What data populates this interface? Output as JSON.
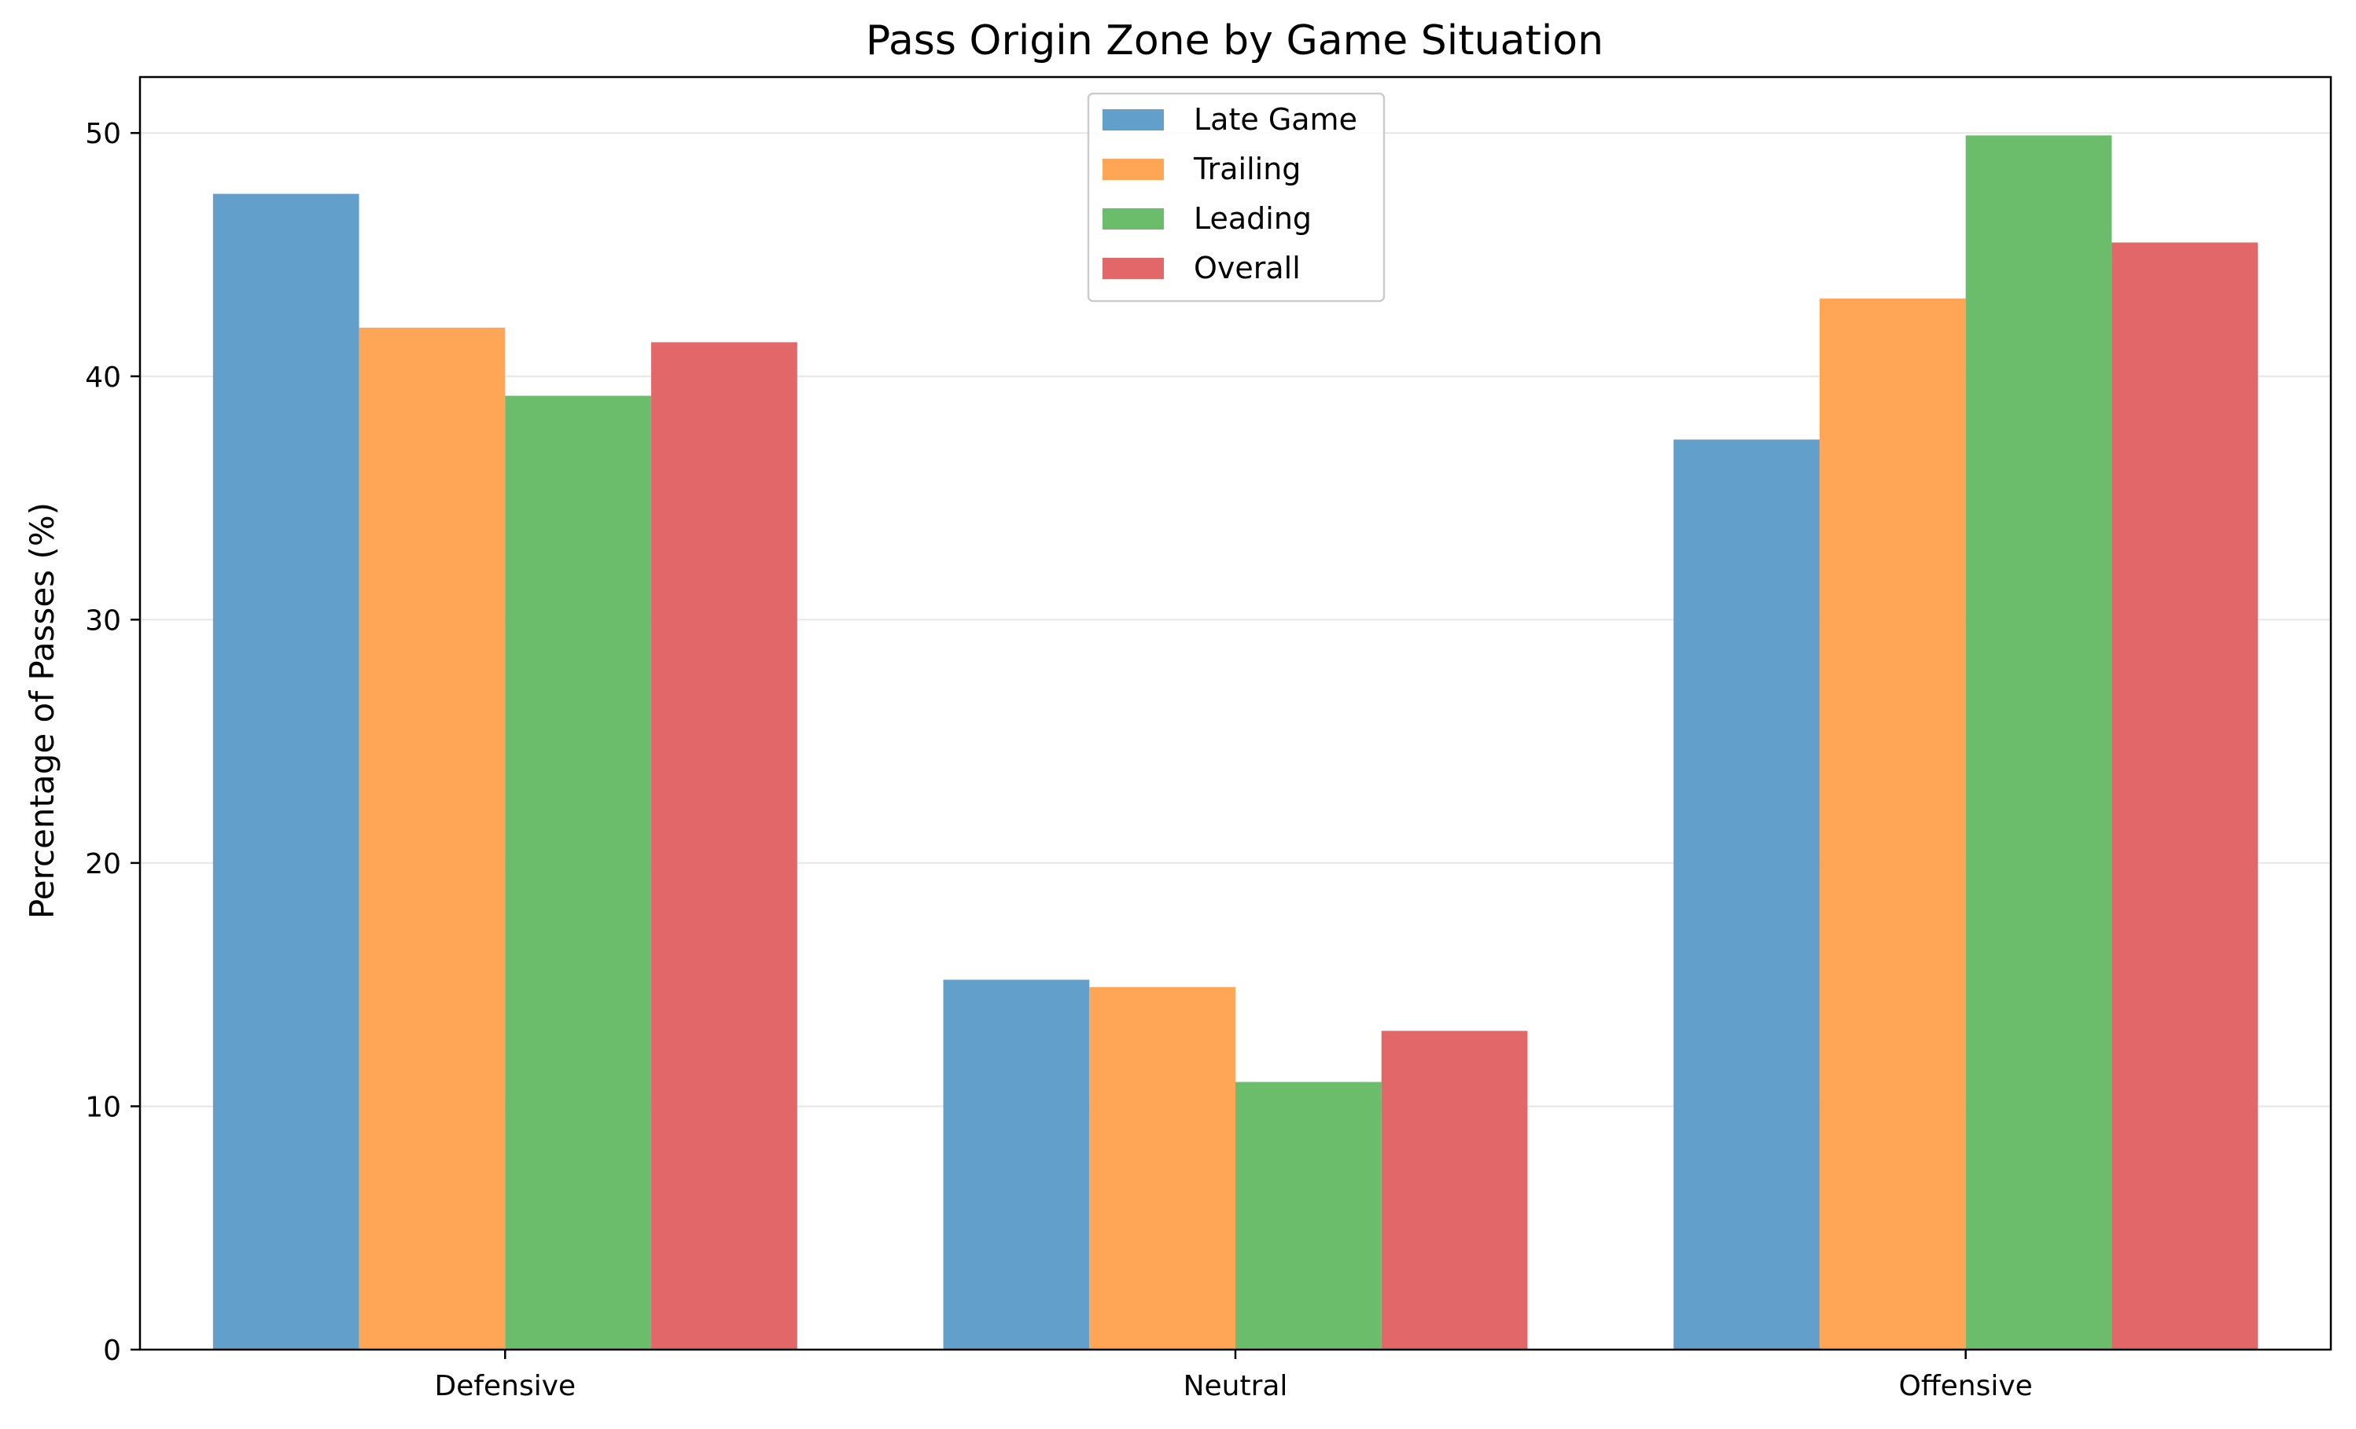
{
  "chart_data": {
    "type": "bar",
    "title": "Pass Origin Zone by Game Situation",
    "xlabel": "",
    "ylabel": "Percentage of Passes (%)",
    "categories": [
      "Defensive",
      "Neutral",
      "Offensive"
    ],
    "series": [
      {
        "name": "Late Game",
        "color": "#629fca",
        "values": [
          47.5,
          15.2,
          37.4
        ]
      },
      {
        "name": "Trailing",
        "color": "#ffa556",
        "values": [
          42.0,
          14.9,
          43.2
        ]
      },
      {
        "name": "Leading",
        "color": "#6bbc6b",
        "values": [
          39.2,
          11.0,
          49.9
        ]
      },
      {
        "name": "Overall",
        "color": "#e26768",
        "values": [
          41.4,
          13.1,
          45.5
        ]
      }
    ],
    "ylim": [
      0,
      52.3
    ],
    "yticks": [
      "0",
      "10",
      "20",
      "30",
      "40",
      "50"
    ],
    "grid": "y",
    "legend_position": "top-center"
  }
}
